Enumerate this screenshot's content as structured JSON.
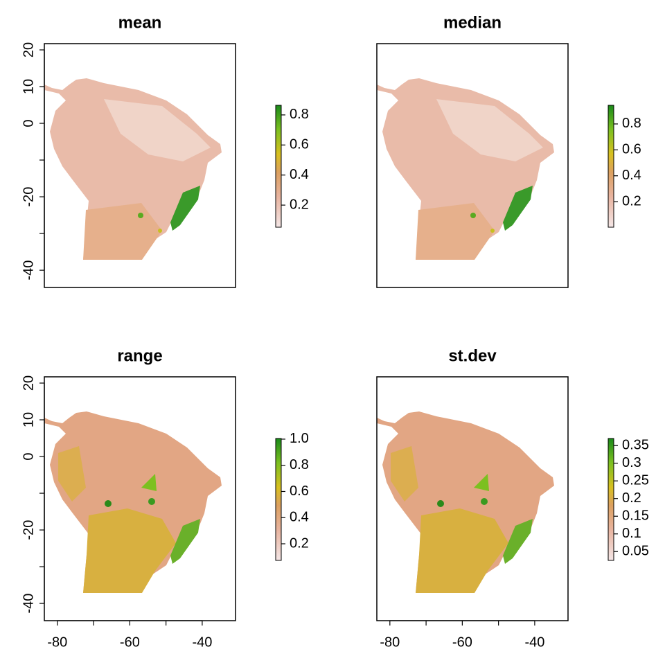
{
  "panels": [
    {
      "title": "mean",
      "xlim": [
        -83.6,
        -30.8
      ],
      "ylim": [
        -44.7,
        21.7
      ],
      "show_x_axis": false,
      "show_y_axis": true,
      "xticks": [],
      "yticks": [
        20,
        10,
        0,
        {
          "value": -10,
          "label": null
        },
        -20,
        {
          "value": -30,
          "label": null
        },
        -40
      ],
      "legend": {
        "zlim": [
          0.053,
          0.864
        ],
        "ticks": [
          0.2,
          0.4,
          0.6,
          0.8
        ]
      },
      "map_style": "low"
    },
    {
      "title": "median",
      "xlim": [
        -83.6,
        -30.8
      ],
      "ylim": [
        -44.7,
        21.7
      ],
      "show_x_axis": false,
      "show_y_axis": false,
      "xticks": [],
      "yticks": [],
      "legend": {
        "zlim": [
          0.003,
          0.944
        ],
        "ticks": [
          0.2,
          0.4,
          0.6,
          0.8
        ]
      },
      "map_style": "low"
    },
    {
      "title": "range",
      "xlim": [
        -83.6,
        -30.8
      ],
      "ylim": [
        -44.7,
        21.7
      ],
      "show_x_axis": true,
      "show_y_axis": true,
      "xticks": [
        -80,
        {
          "value": -70,
          "label": null
        },
        -60,
        {
          "value": -50,
          "label": null
        },
        -40
      ],
      "yticks": [
        20,
        10,
        0,
        {
          "value": -10,
          "label": null
        },
        -20,
        {
          "value": -30,
          "label": null
        },
        -40
      ],
      "legend": {
        "zlim": [
          0.073,
          1.005
        ],
        "ticks": [
          0.2,
          0.4,
          0.6,
          0.8,
          {
            "value": 1,
            "label": "1.0"
          }
        ]
      },
      "map_style": "high"
    },
    {
      "title": "st.dev",
      "xlim": [
        -83.6,
        -30.8
      ],
      "ylim": [
        -44.7,
        21.7
      ],
      "show_x_axis": true,
      "show_y_axis": false,
      "xticks": [
        -80,
        {
          "value": -70,
          "label": null
        },
        -60,
        {
          "value": -50,
          "label": null
        },
        -40
      ],
      "yticks": [],
      "legend": {
        "zlim": [
          0.025,
          0.37
        ],
        "ticks": [
          0.05,
          0.1,
          0.15,
          0.2,
          0.25,
          0.3,
          0.35
        ]
      },
      "map_style": "high"
    }
  ]
}
